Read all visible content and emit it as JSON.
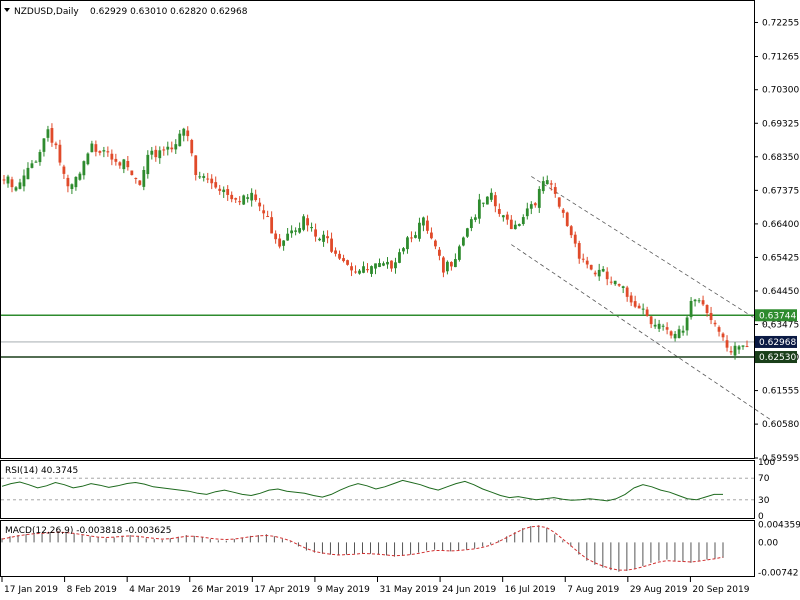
{
  "chart_data": {
    "type": "candlestick",
    "symbol_label": "NZDUSD,Daily",
    "ohlc_header": "0.62929 0.63010 0.62820 0.62968",
    "price_ticks": [
      "0.72255",
      "0.71265",
      "0.70300",
      "0.69325",
      "0.68350",
      "0.67375",
      "0.66400",
      "0.65425",
      "0.64450",
      "0.63475",
      "0.62530",
      "0.61555",
      "0.60580",
      "0.59595"
    ],
    "ylim": [
      0.59595,
      0.7285
    ],
    "date_labels": [
      "17 Jan 2019",
      "8 Feb 2019",
      "4 Mar 2019",
      "26 Mar 2019",
      "17 Apr 2019",
      "9 May 2019",
      "31 May 2019",
      "24 Jun 2019",
      "16 Jul 2019",
      "7 Aug 2019",
      "29 Aug 2019",
      "20 Sep 2019"
    ],
    "price_path": [
      [
        0,
        0.678
      ],
      [
        3,
        0.6745
      ],
      [
        6,
        0.68
      ],
      [
        9,
        0.687
      ],
      [
        11,
        0.693
      ],
      [
        13,
        0.688
      ],
      [
        16,
        0.674
      ],
      [
        19,
        0.679
      ],
      [
        22,
        0.687
      ],
      [
        25,
        0.688
      ],
      [
        28,
        0.685
      ],
      [
        31,
        0.68
      ],
      [
        34,
        0.676
      ],
      [
        36,
        0.683
      ],
      [
        39,
        0.687
      ],
      [
        42,
        0.688
      ],
      [
        44,
        0.692
      ],
      [
        46,
        0.69
      ],
      [
        48,
        0.679
      ],
      [
        51,
        0.678
      ],
      [
        54,
        0.676
      ],
      [
        57,
        0.674
      ],
      [
        60,
        0.673
      ],
      [
        63,
        0.672
      ],
      [
        66,
        0.666
      ],
      [
        69,
        0.66
      ],
      [
        72,
        0.665
      ],
      [
        75,
        0.666
      ],
      [
        78,
        0.661
      ],
      [
        81,
        0.66
      ],
      [
        84,
        0.657
      ],
      [
        87,
        0.653
      ],
      [
        90,
        0.651
      ],
      [
        93,
        0.652
      ],
      [
        96,
        0.652
      ],
      [
        99,
        0.658
      ],
      [
        102,
        0.663
      ],
      [
        105,
        0.665
      ],
      [
        108,
        0.657
      ],
      [
        110,
        0.6505
      ],
      [
        113,
        0.657
      ],
      [
        116,
        0.665
      ],
      [
        119,
        0.67
      ],
      [
        122,
        0.672
      ],
      [
        125,
        0.666
      ],
      [
        128,
        0.665
      ],
      [
        131,
        0.67
      ],
      [
        134,
        0.674
      ],
      [
        136,
        0.6775
      ],
      [
        138,
        0.672
      ],
      [
        141,
        0.665
      ],
      [
        144,
        0.657
      ],
      [
        147,
        0.652
      ],
      [
        150,
        0.65
      ],
      [
        153,
        0.647
      ],
      [
        156,
        0.644
      ],
      [
        159,
        0.642
      ],
      [
        162,
        0.638
      ],
      [
        165,
        0.6345
      ],
      [
        167,
        0.631
      ],
      [
        170,
        0.634
      ],
      [
        172,
        0.643
      ],
      [
        174,
        0.644
      ],
      [
        176,
        0.641
      ],
      [
        178,
        0.636
      ],
      [
        180,
        0.63
      ],
      [
        182,
        0.6262
      ],
      [
        184,
        0.6295
      ],
      [
        186,
        0.6297
      ]
    ],
    "horizontal_levels": [
      {
        "value": 0.63744,
        "label": "0.63744",
        "color": "#2e8b2e"
      },
      {
        "value": 0.6253,
        "label": "0.62530",
        "color": "#1a3f1a"
      }
    ],
    "current_price": {
      "value": 0.62968,
      "label": "0.62968",
      "color": "#0b1a44"
    },
    "channel": {
      "upper": [
        [
          132,
          0.6778
        ],
        [
          192,
          0.6336
        ]
      ],
      "lower": [
        [
          127,
          0.658
        ],
        [
          192,
          0.607
        ]
      ]
    },
    "rsi": {
      "label": "RSI(14) 40.3745",
      "levels": [
        "100",
        "70",
        "30",
        "0"
      ],
      "ylim": [
        0,
        100
      ],
      "values": [
        55,
        60,
        63,
        58,
        52,
        56,
        62,
        58,
        52,
        55,
        60,
        57,
        53,
        56,
        60,
        62,
        59,
        54,
        52,
        50,
        48,
        46,
        42,
        40,
        45,
        48,
        44,
        40,
        38,
        42,
        48,
        50,
        46,
        44,
        42,
        38,
        35,
        40,
        48,
        55,
        60,
        56,
        50,
        54,
        60,
        66,
        62,
        58,
        52,
        48,
        54,
        60,
        64,
        58,
        50,
        44,
        38,
        34,
        36,
        33,
        30,
        32,
        34,
        31,
        29,
        30,
        32,
        30,
        28,
        32,
        40,
        52,
        58,
        54,
        48,
        44,
        38,
        32,
        30,
        35,
        40,
        40
      ]
    },
    "macd": {
      "label": "MACD(12,26,9) -0.003818 -0.003625",
      "ticks": [
        "0.004359",
        "0.00",
        "-0.00742"
      ],
      "ylim": [
        -0.008,
        0.005
      ],
      "histogram": [
        0.001,
        0.0015,
        0.0018,
        0.002,
        0.002,
        0.0022,
        0.0025,
        0.0028,
        0.0026,
        0.0022,
        0.0018,
        0.0015,
        0.0012,
        0.001,
        0.0012,
        0.0016,
        0.0018,
        0.0015,
        0.001,
        0.0008,
        0.0006,
        0.001,
        0.0014,
        0.0018,
        0.0016,
        0.0012,
        0.0008,
        0.0005,
        0.0004,
        0.0008,
        0.0012,
        0.0016,
        0.0018,
        0.002,
        0.0015,
        0.0008,
        0.0002,
        -0.001,
        -0.002,
        -0.0025,
        -0.0028,
        -0.003,
        -0.0032,
        -0.003,
        -0.0028,
        -0.0026,
        -0.0028,
        -0.003,
        -0.0032,
        -0.0035,
        -0.0033,
        -0.003,
        -0.0025,
        -0.002,
        -0.0018,
        -0.002,
        -0.0022,
        -0.002,
        -0.0018,
        -0.0015,
        -0.001,
        -0.0005,
        0.0005,
        0.0015,
        0.0025,
        0.0035,
        0.004,
        0.0042,
        0.0035,
        0.002,
        0.0005,
        -0.001,
        -0.003,
        -0.0045,
        -0.0055,
        -0.0062,
        -0.0068,
        -0.0072,
        -0.007,
        -0.0065,
        -0.0058,
        -0.005,
        -0.0045,
        -0.0042,
        -0.0045,
        -0.0048,
        -0.005,
        -0.0046,
        -0.0042,
        -0.004,
        -0.0038
      ],
      "signal": [
        0.0008,
        0.0012,
        0.0016,
        0.0019,
        0.0021,
        0.0022,
        0.0024,
        0.0025,
        0.0024,
        0.0022,
        0.0019,
        0.0016,
        0.0013,
        0.0012,
        0.0013,
        0.0015,
        0.0016,
        0.0015,
        0.0012,
        0.001,
        0.0008,
        0.0009,
        0.0012,
        0.0015,
        0.0015,
        0.0013,
        0.001,
        0.0008,
        0.0007,
        0.0008,
        0.0011,
        0.0014,
        0.0016,
        0.0017,
        0.0015,
        0.001,
        0.0004,
        -0.0006,
        -0.0015,
        -0.0022,
        -0.0026,
        -0.0029,
        -0.0031,
        -0.003,
        -0.0029,
        -0.0027,
        -0.0028,
        -0.0029,
        -0.0031,
        -0.0033,
        -0.0032,
        -0.003,
        -0.0027,
        -0.0023,
        -0.002,
        -0.002,
        -0.0021,
        -0.002,
        -0.0018,
        -0.0016,
        -0.0012,
        -0.0007,
        0.0002,
        0.0012,
        0.0022,
        0.0032,
        0.0038,
        0.004,
        0.0036,
        0.0024,
        0.0008,
        -0.0008,
        -0.0025,
        -0.004,
        -0.005,
        -0.0058,
        -0.0064,
        -0.0068,
        -0.0068,
        -0.0065,
        -0.006,
        -0.0054,
        -0.0048,
        -0.0045,
        -0.0046,
        -0.0047,
        -0.0048,
        -0.0046,
        -0.0043,
        -0.004,
        -0.0036
      ]
    }
  },
  "colors": {
    "bull": "#2e8b2e",
    "bear": "#e04a2a",
    "rsi_line": "#1e6a1e",
    "macd_hist": "#555555",
    "macd_signal": "#d03030",
    "grid_border": "#000000"
  }
}
